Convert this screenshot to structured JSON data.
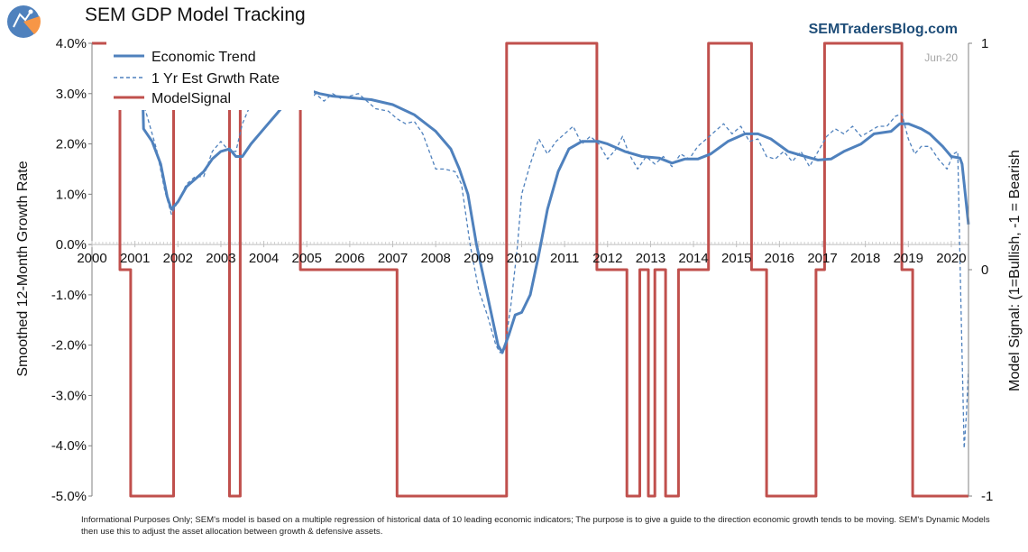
{
  "header": {
    "title": "SEM GDP Model Tracking",
    "brand": "SEMTradersBlog.com",
    "logo_icon": "sem-logo-icon"
  },
  "footnote": "Informational Purposes Only; SEM's model is based on a multiple regression of historical data of 10 leading economic indicators; The purpose is to give a guide to the direction economic growth tends to be moving. SEM's Dynamic Models then use this to adjust the asset allocation between growth & defensive assets.",
  "colors": {
    "trend": "#4f81bd",
    "estimate": "#4f81bd",
    "signal": "#c0504d",
    "axis": "#808080",
    "date_stamp": "#a6a6a6",
    "brand": "#1f4e79"
  },
  "chart_data": {
    "type": "line",
    "date_stamp": "Jun-20",
    "ylabel": "Smoothed 12-Month Growth Rate",
    "y2label": "Model Signal: (1=Bullish, -1 = Bearish",
    "ylim": [
      -5.0,
      4.0
    ],
    "y2lim": [
      -1,
      1
    ],
    "xlim": [
      2000,
      2020.4
    ],
    "yticks": [
      "4.0%",
      "3.0%",
      "2.0%",
      "1.0%",
      "0.0%",
      "-1.0%",
      "-2.0%",
      "-3.0%",
      "-4.0%",
      "-5.0%"
    ],
    "y2ticks": [
      "1",
      "0",
      "-1"
    ],
    "xticks": [
      "2000",
      "2001",
      "2002",
      "2003",
      "2004",
      "2005",
      "2006",
      "2007",
      "2008",
      "2009",
      "2010",
      "2011",
      "2012",
      "2013",
      "2014",
      "2015",
      "2016",
      "2017",
      "2018",
      "2019",
      "2020"
    ],
    "legend": {
      "position": "top-left",
      "entries": [
        "Economic Trend",
        "1 Yr Est Grwth Rate",
        "ModelSignal"
      ]
    },
    "series": [
      {
        "name": "Economic Trend",
        "axis": "left",
        "style": "solid",
        "points": [
          [
            2001.15,
            4.0
          ],
          [
            2001.2,
            2.3
          ],
          [
            2001.4,
            2.05
          ],
          [
            2001.6,
            1.6
          ],
          [
            2001.75,
            0.95
          ],
          [
            2001.85,
            0.7
          ],
          [
            2002.0,
            0.85
          ],
          [
            2002.2,
            1.15
          ],
          [
            2002.4,
            1.3
          ],
          [
            2002.6,
            1.45
          ],
          [
            2002.8,
            1.7
          ],
          [
            2003.0,
            1.85
          ],
          [
            2003.2,
            1.9
          ],
          [
            2003.35,
            1.75
          ],
          [
            2003.5,
            1.75
          ],
          [
            2003.7,
            2.0
          ],
          [
            2004.0,
            2.3
          ],
          [
            2004.3,
            2.6
          ],
          [
            2004.5,
            2.8
          ],
          [
            2004.62,
            2.98
          ],
          [
            2004.9,
            3.05
          ],
          [
            2005.0,
            3.08
          ],
          [
            2005.3,
            3.0
          ],
          [
            2005.6,
            2.95
          ],
          [
            2006.0,
            2.92
          ],
          [
            2006.5,
            2.88
          ],
          [
            2007.0,
            2.78
          ],
          [
            2007.5,
            2.58
          ],
          [
            2008.0,
            2.25
          ],
          [
            2008.35,
            1.9
          ],
          [
            2008.55,
            1.5
          ],
          [
            2008.75,
            1.0
          ],
          [
            2008.95,
            0.0
          ],
          [
            2009.2,
            -1.0
          ],
          [
            2009.45,
            -2.0
          ],
          [
            2009.55,
            -2.15
          ],
          [
            2009.7,
            -1.8
          ],
          [
            2009.85,
            -1.4
          ],
          [
            2010.0,
            -1.35
          ],
          [
            2010.2,
            -1.0
          ],
          [
            2010.4,
            -0.2
          ],
          [
            2010.6,
            0.7
          ],
          [
            2010.85,
            1.45
          ],
          [
            2011.1,
            1.9
          ],
          [
            2011.4,
            2.05
          ],
          [
            2011.8,
            2.05
          ],
          [
            2012.0,
            2.0
          ],
          [
            2012.4,
            1.85
          ],
          [
            2012.8,
            1.75
          ],
          [
            2013.2,
            1.72
          ],
          [
            2013.5,
            1.62
          ],
          [
            2013.8,
            1.7
          ],
          [
            2014.1,
            1.7
          ],
          [
            2014.4,
            1.8
          ],
          [
            2014.8,
            2.05
          ],
          [
            2015.2,
            2.2
          ],
          [
            2015.5,
            2.2
          ],
          [
            2015.8,
            2.1
          ],
          [
            2016.2,
            1.85
          ],
          [
            2016.6,
            1.75
          ],
          [
            2016.9,
            1.68
          ],
          [
            2017.2,
            1.7
          ],
          [
            2017.5,
            1.85
          ],
          [
            2017.9,
            2.0
          ],
          [
            2018.2,
            2.2
          ],
          [
            2018.6,
            2.25
          ],
          [
            2018.8,
            2.4
          ],
          [
            2019.0,
            2.4
          ],
          [
            2019.3,
            2.3
          ],
          [
            2019.5,
            2.2
          ],
          [
            2019.8,
            1.95
          ],
          [
            2020.0,
            1.75
          ],
          [
            2020.2,
            1.72
          ],
          [
            2020.25,
            1.6
          ],
          [
            2020.4,
            0.4
          ]
        ]
      },
      {
        "name": "1 Yr Est Grwth Rate",
        "axis": "left",
        "style": "dashed",
        "points": [
          [
            2001.0,
            3.05
          ],
          [
            2001.2,
            2.8
          ],
          [
            2001.5,
            1.9
          ],
          [
            2001.7,
            1.05
          ],
          [
            2001.85,
            0.6
          ],
          [
            2002.0,
            0.85
          ],
          [
            2002.2,
            1.2
          ],
          [
            2002.4,
            1.35
          ],
          [
            2002.6,
            1.35
          ],
          [
            2002.8,
            1.85
          ],
          [
            2003.0,
            2.05
          ],
          [
            2003.2,
            1.85
          ],
          [
            2003.35,
            1.85
          ],
          [
            2003.5,
            2.4
          ],
          [
            2003.7,
            2.8
          ],
          [
            2004.0,
            2.98
          ],
          [
            2004.3,
            3.0
          ],
          [
            2004.5,
            3.05
          ],
          [
            2004.62,
            2.98
          ],
          [
            2004.85,
            2.98
          ],
          [
            2005.0,
            2.75
          ],
          [
            2005.2,
            3.0
          ],
          [
            2005.4,
            2.85
          ],
          [
            2005.6,
            3.0
          ],
          [
            2005.8,
            2.9
          ],
          [
            2006.0,
            2.95
          ],
          [
            2006.2,
            3.0
          ],
          [
            2006.4,
            2.85
          ],
          [
            2006.6,
            2.7
          ],
          [
            2006.9,
            2.65
          ],
          [
            2007.1,
            2.5
          ],
          [
            2007.3,
            2.4
          ],
          [
            2007.5,
            2.45
          ],
          [
            2007.7,
            2.2
          ],
          [
            2008.0,
            1.5
          ],
          [
            2008.2,
            1.5
          ],
          [
            2008.45,
            1.45
          ],
          [
            2008.6,
            1.2
          ],
          [
            2008.8,
            0.0
          ],
          [
            2009.0,
            -0.9
          ],
          [
            2009.2,
            -1.4
          ],
          [
            2009.4,
            -2.0
          ],
          [
            2009.5,
            -2.15
          ],
          [
            2009.6,
            -2.1
          ],
          [
            2009.75,
            -1.2
          ],
          [
            2009.9,
            -0.05
          ],
          [
            2010.0,
            1.0
          ],
          [
            2010.2,
            1.6
          ],
          [
            2010.4,
            2.1
          ],
          [
            2010.6,
            1.8
          ],
          [
            2010.8,
            2.05
          ],
          [
            2011.0,
            2.2
          ],
          [
            2011.2,
            2.35
          ],
          [
            2011.4,
            2.0
          ],
          [
            2011.6,
            2.15
          ],
          [
            2011.8,
            2.0
          ],
          [
            2012.0,
            1.7
          ],
          [
            2012.2,
            1.9
          ],
          [
            2012.35,
            2.15
          ],
          [
            2012.5,
            1.8
          ],
          [
            2012.7,
            1.5
          ],
          [
            2012.9,
            1.75
          ],
          [
            2013.1,
            1.6
          ],
          [
            2013.3,
            1.75
          ],
          [
            2013.5,
            1.55
          ],
          [
            2013.7,
            1.8
          ],
          [
            2013.9,
            1.7
          ],
          [
            2014.1,
            1.95
          ],
          [
            2014.3,
            2.1
          ],
          [
            2014.5,
            2.25
          ],
          [
            2014.7,
            2.4
          ],
          [
            2014.9,
            2.2
          ],
          [
            2015.1,
            2.35
          ],
          [
            2015.3,
            2.05
          ],
          [
            2015.5,
            2.1
          ],
          [
            2015.7,
            1.75
          ],
          [
            2015.9,
            1.7
          ],
          [
            2016.1,
            1.85
          ],
          [
            2016.3,
            1.65
          ],
          [
            2016.5,
            1.85
          ],
          [
            2016.7,
            1.55
          ],
          [
            2016.9,
            1.85
          ],
          [
            2017.1,
            2.15
          ],
          [
            2017.3,
            2.3
          ],
          [
            2017.5,
            2.2
          ],
          [
            2017.7,
            2.35
          ],
          [
            2017.9,
            2.15
          ],
          [
            2018.1,
            2.25
          ],
          [
            2018.3,
            2.35
          ],
          [
            2018.5,
            2.35
          ],
          [
            2018.7,
            2.55
          ],
          [
            2018.85,
            2.6
          ],
          [
            2019.0,
            2.1
          ],
          [
            2019.15,
            1.8
          ],
          [
            2019.3,
            1.95
          ],
          [
            2019.5,
            1.95
          ],
          [
            2019.7,
            1.7
          ],
          [
            2019.9,
            1.5
          ],
          [
            2020.05,
            1.8
          ],
          [
            2020.15,
            1.85
          ],
          [
            2020.22,
            -1.0
          ],
          [
            2020.3,
            -4.05
          ],
          [
            2020.35,
            -3.4
          ],
          [
            2020.4,
            -2.5
          ]
        ]
      },
      {
        "name": "ModelSignal",
        "axis": "right",
        "style": "step",
        "points": [
          [
            2000.0,
            1
          ],
          [
            2000.65,
            1
          ],
          [
            2000.65,
            0
          ],
          [
            2000.9,
            0
          ],
          [
            2000.9,
            -1
          ],
          [
            2001.9,
            -1
          ],
          [
            2001.9,
            1
          ],
          [
            2003.2,
            1
          ],
          [
            2003.2,
            -1
          ],
          [
            2003.45,
            -1
          ],
          [
            2003.45,
            1
          ],
          [
            2004.85,
            1
          ],
          [
            2004.85,
            0
          ],
          [
            2007.1,
            0
          ],
          [
            2007.1,
            -1
          ],
          [
            2009.65,
            -1
          ],
          [
            2009.65,
            1
          ],
          [
            2011.75,
            1
          ],
          [
            2011.75,
            0
          ],
          [
            2012.45,
            0
          ],
          [
            2012.45,
            -1
          ],
          [
            2012.75,
            -1
          ],
          [
            2012.75,
            0
          ],
          [
            2012.95,
            0
          ],
          [
            2012.95,
            -1
          ],
          [
            2013.1,
            -1
          ],
          [
            2013.1,
            0
          ],
          [
            2013.35,
            0
          ],
          [
            2013.35,
            -1
          ],
          [
            2013.65,
            -1
          ],
          [
            2013.65,
            0
          ],
          [
            2014.35,
            0
          ],
          [
            2014.35,
            1
          ],
          [
            2015.35,
            1
          ],
          [
            2015.35,
            0
          ],
          [
            2015.7,
            0
          ],
          [
            2015.7,
            -1
          ],
          [
            2016.85,
            -1
          ],
          [
            2016.85,
            0
          ],
          [
            2017.05,
            0
          ],
          [
            2017.05,
            1
          ],
          [
            2018.85,
            1
          ],
          [
            2018.85,
            0
          ],
          [
            2019.1,
            0
          ],
          [
            2019.1,
            -1
          ],
          [
            2020.4,
            -1
          ]
        ]
      }
    ]
  }
}
